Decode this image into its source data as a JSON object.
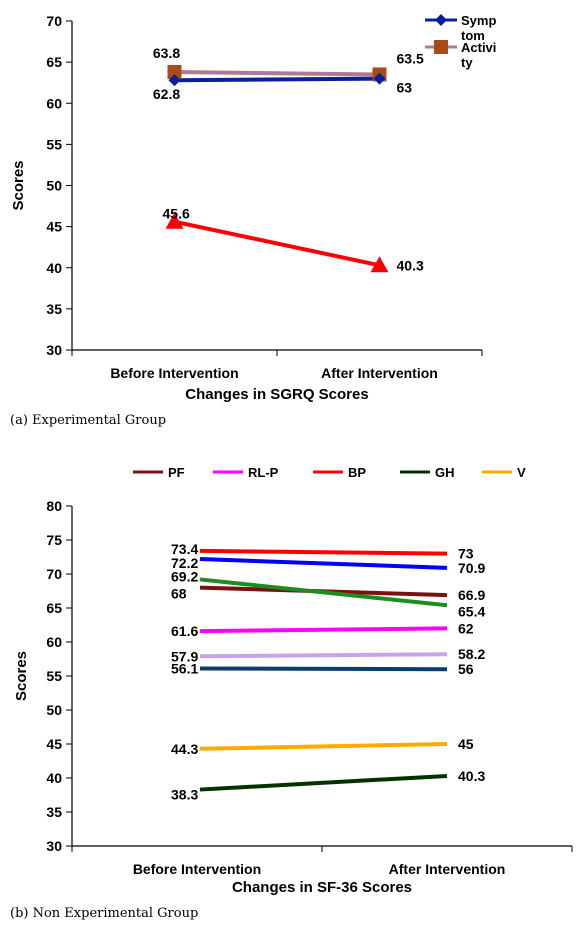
{
  "charts": [
    {
      "type": "line",
      "categories": [
        "Before Intervention",
        "After Intervention"
      ],
      "xlabel": "Changes in SGRQ Scores",
      "ylabel": "Scores",
      "ylim": [
        30,
        70
      ],
      "ystep": 5,
      "grid": false,
      "legend_position": "top-right",
      "series": [
        {
          "name": "Symptom",
          "legend_lines": [
            "Symp",
            "tom"
          ],
          "values": [
            62.8,
            63
          ],
          "color": "#0a1f9e",
          "marker": "diamond",
          "labels": [
            "62.8",
            "63"
          ]
        },
        {
          "name": "Activity",
          "legend_lines": [
            "Activi",
            "ty"
          ],
          "values": [
            63.8,
            63.5
          ],
          "color": "#b07a8e",
          "marker": "square",
          "marker_color": "#a84a1a",
          "labels": [
            "63.8",
            "63.5"
          ]
        },
        {
          "name": "",
          "legend_lines": [],
          "values": [
            45.6,
            40.3
          ],
          "color": "#ff0000",
          "marker": "triangle",
          "labels": [
            "45.6",
            "40.3"
          ]
        }
      ],
      "caption": "(a)  Experimental Group"
    },
    {
      "type": "line",
      "categories": [
        "Before Intervention",
        "After Intervention"
      ],
      "xlabel": "Changes in SF-36 Scores",
      "ylabel": "Scores",
      "ylim": [
        30,
        80
      ],
      "ystep": 5,
      "grid": false,
      "legend_position": "top",
      "series": [
        {
          "name": "PF",
          "values": [
            68,
            66.9
          ],
          "color": "#7a1010",
          "labels": [
            "68",
            "66.9"
          ]
        },
        {
          "name": "RL-P",
          "values": [
            61.6,
            62
          ],
          "color": "#ff00ff",
          "labels": [
            "61.6",
            "62"
          ]
        },
        {
          "name": "BP",
          "values": [
            73.4,
            73
          ],
          "color": "#ff0000",
          "labels": [
            "73.4",
            "73"
          ]
        },
        {
          "name": "GH",
          "values": [
            38.3,
            40.3
          ],
          "color": "#003300",
          "labels": [
            "38.3",
            "40.3"
          ]
        },
        {
          "name": "V",
          "values": [
            44.3,
            45
          ],
          "color": "#ffaa00",
          "labels": [
            "44.3",
            "45"
          ]
        },
        {
          "name": "",
          "values": [
            72.2,
            70.9
          ],
          "color": "#0000ff",
          "labels": [
            "72.2",
            "70.9"
          ]
        },
        {
          "name": "",
          "values": [
            69.2,
            65.4
          ],
          "color": "#1e8c1e",
          "labels": [
            "69.2",
            "65.4"
          ]
        },
        {
          "name": "",
          "values": [
            57.9,
            58.2
          ],
          "color": "#c9a3e8",
          "labels": [
            "57.9",
            "58.2"
          ]
        },
        {
          "name": "",
          "values": [
            56.1,
            56
          ],
          "color": "#0b3d6b",
          "labels": [
            "56.1",
            "56"
          ]
        }
      ],
      "caption": "(b) Non Experimental Group"
    }
  ]
}
